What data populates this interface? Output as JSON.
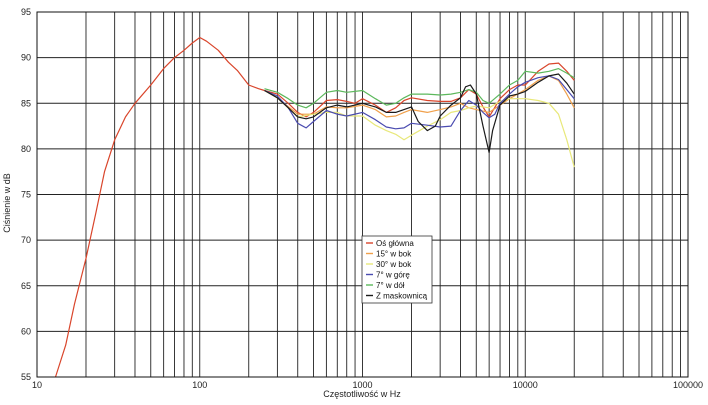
{
  "chart_data": {
    "type": "line",
    "title": "",
    "xlabel": "Częstotliwość w Hz",
    "ylabel": "Ciśnienie w dB",
    "x_scale": "log",
    "xlim": [
      10,
      100000
    ],
    "ylim": [
      55,
      95
    ],
    "x_ticks": [
      10,
      100,
      1000,
      10000,
      100000
    ],
    "x_tick_labels": [
      "10",
      "100",
      "1000",
      "10000",
      "100000"
    ],
    "y_ticks": [
      55,
      60,
      65,
      70,
      75,
      80,
      85,
      90,
      95
    ],
    "y_tick_labels": [
      "55",
      "60",
      "65",
      "70",
      "75",
      "80",
      "85",
      "90",
      "95"
    ],
    "grid": true,
    "legend": "center",
    "series": [
      {
        "name": "Oś główna",
        "color": "#d9452b",
        "points": [
          [
            13,
            55
          ],
          [
            15,
            58.5
          ],
          [
            17,
            63
          ],
          [
            20,
            68
          ],
          [
            23,
            73
          ],
          [
            26,
            77.5
          ],
          [
            30,
            81
          ],
          [
            35,
            83.5
          ],
          [
            40,
            85
          ],
          [
            50,
            87
          ],
          [
            60,
            88.8
          ],
          [
            70,
            90
          ],
          [
            80,
            90.8
          ],
          [
            90,
            91.6
          ],
          [
            100,
            92.2
          ],
          [
            110,
            91.8
          ],
          [
            130,
            90.8
          ],
          [
            150,
            89.5
          ],
          [
            170,
            88.6
          ],
          [
            200,
            87
          ],
          [
            230,
            86.6
          ],
          [
            250,
            86.4
          ],
          [
            300,
            86
          ],
          [
            350,
            85
          ],
          [
            400,
            84
          ],
          [
            450,
            83.5
          ],
          [
            500,
            84
          ],
          [
            600,
            85.3
          ],
          [
            700,
            85.4
          ],
          [
            800,
            85.2
          ],
          [
            900,
            85
          ],
          [
            1000,
            85.5
          ],
          [
            1200,
            84.8
          ],
          [
            1400,
            84
          ],
          [
            1600,
            84.5
          ],
          [
            1800,
            85.3
          ],
          [
            2000,
            85.6
          ],
          [
            2500,
            85.3
          ],
          [
            3000,
            85.2
          ],
          [
            3500,
            85.2
          ],
          [
            4000,
            85.6
          ],
          [
            4500,
            86.5
          ],
          [
            5000,
            86
          ],
          [
            5500,
            84.6
          ],
          [
            6000,
            83.5
          ],
          [
            7000,
            85.5
          ],
          [
            8000,
            86.5
          ],
          [
            9000,
            87
          ],
          [
            10000,
            87
          ],
          [
            12000,
            88.5
          ],
          [
            14000,
            89.3
          ],
          [
            16000,
            89.4
          ],
          [
            18000,
            88.5
          ],
          [
            20000,
            87.5
          ]
        ]
      },
      {
        "name": "15° w bok",
        "color": "#f0a04b",
        "points": [
          [
            250,
            86.4
          ],
          [
            300,
            85.6
          ],
          [
            400,
            83.8
          ],
          [
            500,
            83.8
          ],
          [
            600,
            84.6
          ],
          [
            700,
            84.5
          ],
          [
            800,
            84.5
          ],
          [
            1000,
            84.8
          ],
          [
            1200,
            84.3
          ],
          [
            1400,
            83.5
          ],
          [
            1600,
            83.6
          ],
          [
            1800,
            84
          ],
          [
            2000,
            84.3
          ],
          [
            2500,
            84
          ],
          [
            3000,
            84.3
          ],
          [
            3500,
            84.6
          ],
          [
            4000,
            85
          ],
          [
            4500,
            84.5
          ],
          [
            5000,
            84.3
          ],
          [
            6000,
            84
          ],
          [
            7000,
            84.8
          ],
          [
            8000,
            85.5
          ],
          [
            10000,
            86.5
          ],
          [
            12000,
            87.5
          ],
          [
            14000,
            88
          ],
          [
            16000,
            87.5
          ],
          [
            18000,
            86
          ],
          [
            20000,
            84.5
          ]
        ]
      },
      {
        "name": "30° w bok",
        "color": "#e8e87a",
        "points": [
          [
            250,
            86.4
          ],
          [
            300,
            85.6
          ],
          [
            400,
            83.5
          ],
          [
            500,
            83.8
          ],
          [
            600,
            84
          ],
          [
            700,
            84
          ],
          [
            800,
            83.6
          ],
          [
            1000,
            83.6
          ],
          [
            1200,
            82.6
          ],
          [
            1400,
            82
          ],
          [
            1600,
            81.6
          ],
          [
            1800,
            81
          ],
          [
            2000,
            81.5
          ],
          [
            2500,
            82.5
          ],
          [
            3000,
            83.2
          ],
          [
            3500,
            84
          ],
          [
            4000,
            84.2
          ],
          [
            4500,
            84.5
          ],
          [
            5000,
            84.7
          ],
          [
            6000,
            84.5
          ],
          [
            7000,
            85.2
          ],
          [
            8000,
            85.5
          ],
          [
            10000,
            85.5
          ],
          [
            12000,
            85.3
          ],
          [
            14000,
            85
          ],
          [
            16000,
            83.8
          ],
          [
            18000,
            81
          ],
          [
            20000,
            78
          ]
        ]
      },
      {
        "name": "7° w górę",
        "color": "#4a4bb0",
        "points": [
          [
            250,
            86.4
          ],
          [
            300,
            85.8
          ],
          [
            350,
            84.5
          ],
          [
            400,
            82.8
          ],
          [
            450,
            82.3
          ],
          [
            500,
            83
          ],
          [
            600,
            84.2
          ],
          [
            700,
            83.8
          ],
          [
            800,
            83.6
          ],
          [
            1000,
            84
          ],
          [
            1200,
            83.2
          ],
          [
            1400,
            82.4
          ],
          [
            1600,
            82.2
          ],
          [
            1800,
            82.3
          ],
          [
            2000,
            82.8
          ],
          [
            2500,
            82.6
          ],
          [
            3000,
            82.4
          ],
          [
            3500,
            82.5
          ],
          [
            4000,
            84.2
          ],
          [
            4500,
            85.3
          ],
          [
            5000,
            84.8
          ],
          [
            5500,
            84
          ],
          [
            6000,
            83.4
          ],
          [
            6500,
            83.8
          ],
          [
            7000,
            85
          ],
          [
            8000,
            86
          ],
          [
            9000,
            86.8
          ],
          [
            10000,
            87.3
          ],
          [
            12000,
            87.8
          ],
          [
            14000,
            88
          ],
          [
            16000,
            87.6
          ],
          [
            18000,
            86.5
          ],
          [
            20000,
            85.5
          ]
        ]
      },
      {
        "name": "7° w dół",
        "color": "#5cb85c",
        "points": [
          [
            250,
            86.6
          ],
          [
            300,
            86.2
          ],
          [
            350,
            85.5
          ],
          [
            400,
            84.8
          ],
          [
            450,
            84.5
          ],
          [
            500,
            85
          ],
          [
            600,
            86.2
          ],
          [
            700,
            86.4
          ],
          [
            800,
            86.2
          ],
          [
            1000,
            86.4
          ],
          [
            1200,
            85.5
          ],
          [
            1400,
            84.8
          ],
          [
            1600,
            85
          ],
          [
            1800,
            85.6
          ],
          [
            2000,
            86
          ],
          [
            2500,
            86
          ],
          [
            3000,
            85.9
          ],
          [
            3500,
            86
          ],
          [
            4000,
            86.2
          ],
          [
            4500,
            86.5
          ],
          [
            5000,
            86.2
          ],
          [
            5500,
            85.3
          ],
          [
            6000,
            85
          ],
          [
            7000,
            86
          ],
          [
            8000,
            87
          ],
          [
            9000,
            87.5
          ],
          [
            10000,
            88.5
          ],
          [
            12000,
            88.3
          ],
          [
            14000,
            88.5
          ],
          [
            16000,
            88.8
          ],
          [
            18000,
            88.3
          ],
          [
            20000,
            87.8
          ]
        ]
      },
      {
        "name": "Z maskownicą",
        "color": "#1a1a1a",
        "points": [
          [
            250,
            86.4
          ],
          [
            300,
            85.6
          ],
          [
            350,
            84.5
          ],
          [
            400,
            83.5
          ],
          [
            450,
            83.3
          ],
          [
            500,
            83.5
          ],
          [
            600,
            84.5
          ],
          [
            700,
            84.8
          ],
          [
            800,
            84.6
          ],
          [
            1000,
            85
          ],
          [
            1200,
            84.6
          ],
          [
            1400,
            84
          ],
          [
            1600,
            84
          ],
          [
            1800,
            84.3
          ],
          [
            2000,
            84.6
          ],
          [
            2200,
            83
          ],
          [
            2500,
            82
          ],
          [
            2800,
            82.5
          ],
          [
            3000,
            83.6
          ],
          [
            3500,
            84.8
          ],
          [
            4000,
            85.6
          ],
          [
            4300,
            86.8
          ],
          [
            4600,
            87
          ],
          [
            5000,
            86
          ],
          [
            5500,
            82.5
          ],
          [
            6000,
            79.6
          ],
          [
            6300,
            82
          ],
          [
            7000,
            84.8
          ],
          [
            8000,
            85.8
          ],
          [
            9000,
            86
          ],
          [
            10000,
            86.3
          ],
          [
            12000,
            87.3
          ],
          [
            14000,
            88
          ],
          [
            16000,
            88.2
          ],
          [
            18000,
            87.2
          ],
          [
            20000,
            86
          ]
        ]
      }
    ]
  }
}
